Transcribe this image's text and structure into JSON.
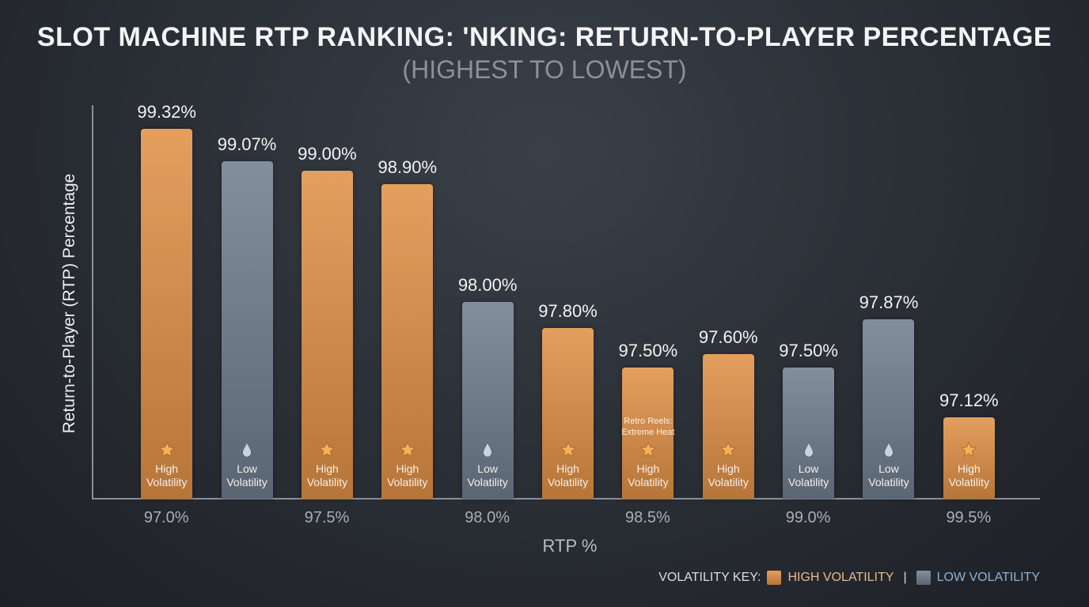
{
  "chart_data": {
    "type": "bar",
    "title": "SLOT MACHINE RTP RANKING: 'NKING: RETURN-TO-PLAYER PERCENTAGE",
    "subtitle": "(HIGHEST TO LOWEST)",
    "y_label": "Return-to-Player (RTP) Percentage",
    "x_label": "RTP %",
    "categories": [
      null,
      null,
      null,
      null,
      null,
      null,
      null,
      null,
      null,
      null,
      null
    ],
    "values": [
      99.32,
      99.07,
      99.0,
      98.9,
      98.0,
      97.8,
      97.5,
      97.6,
      97.5,
      97.87,
      97.12
    ],
    "value_labels": [
      "99.32%",
      "99.07%",
      "99.00%",
      "98.90%",
      "98.00%",
      "97.80%",
      "97.50%",
      "97.60%",
      "97.50%",
      "97.87%",
      "97.12%"
    ],
    "colors": [
      "#df8f45",
      "#6e7c8c",
      "#df8f45",
      "#df8f45",
      "#6e7c8c",
      "#df8f45",
      "#df8f45",
      "#df8f45",
      "#6e7c8c",
      "#6e7c8c",
      "#df8f45"
    ],
    "bar_texts": [
      "High Volatility",
      "Low Volatility",
      "High Volatility",
      "High Volatility",
      "Low Volatility",
      "High Volatility",
      "High Volatility",
      "High Volatility",
      "Low Volatility",
      "Low Volatility",
      "High Volatility"
    ],
    "bar_notes": [
      null,
      null,
      null,
      null,
      null,
      null,
      "Retro Reels: Extreme Heat",
      null,
      null,
      null,
      null
    ],
    "ylim": [
      96.5,
      99.5
    ],
    "xlim": [
      96.77,
      99.72
    ],
    "xticks": [
      {
        "value": 97.0,
        "label": "97.0%"
      },
      {
        "value": 97.5,
        "label": "97.5%"
      },
      {
        "value": 98.0,
        "label": "98.0%"
      },
      {
        "value": 98.5,
        "label": "98.5%"
      },
      {
        "value": 99.0,
        "label": "99.0%"
      },
      {
        "value": 99.5,
        "label": "99.5%"
      }
    ],
    "legend_title": "VOLATILITY KEY:",
    "legend_separator": "|",
    "legend": [
      {
        "name": "HIGH VOLATILITY",
        "color": "#df8f45",
        "text_color": "#e6b98a"
      },
      {
        "name": "LOW VOLATILITY",
        "color": "#6e7c8c",
        "text_color": "#8fb0d6"
      }
    ]
  }
}
